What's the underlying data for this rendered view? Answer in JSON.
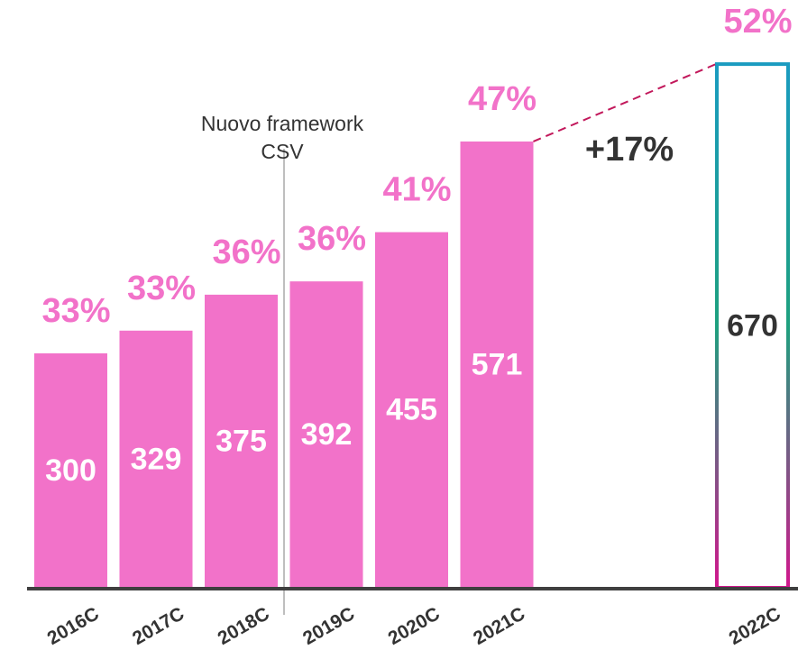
{
  "chart_data": {
    "type": "bar",
    "categories": [
      "2016C",
      "2017C",
      "2018C",
      "2019C",
      "2020C",
      "2021C",
      null,
      null,
      "2022C"
    ],
    "series": [
      {
        "color": "#f272c9",
        "label_color": "#ffffff",
        "values": [
          300,
          329,
          375,
          392,
          455,
          571,
          null,
          null,
          null
        ]
      },
      {
        "style": "outline",
        "gradient": [
          "#1a9bc0",
          "#1ea07e",
          "#d1168c"
        ],
        "label_color": "#333333",
        "values": [
          null,
          null,
          null,
          null,
          null,
          null,
          null,
          null,
          670
        ]
      }
    ],
    "share_values": [
      33,
      33,
      36,
      36,
      41,
      47,
      null,
      null,
      52
    ],
    "share_labels": [
      "33%",
      "33%",
      "36%",
      "36%",
      "41%",
      "47%",
      null,
      null,
      "52%"
    ],
    "share_color": "#f272c9",
    "ylim": [
      0,
      750
    ],
    "annotations": {
      "framework": [
        "Nuovo framework",
        "CSV"
      ],
      "growth": "+17%"
    }
  }
}
